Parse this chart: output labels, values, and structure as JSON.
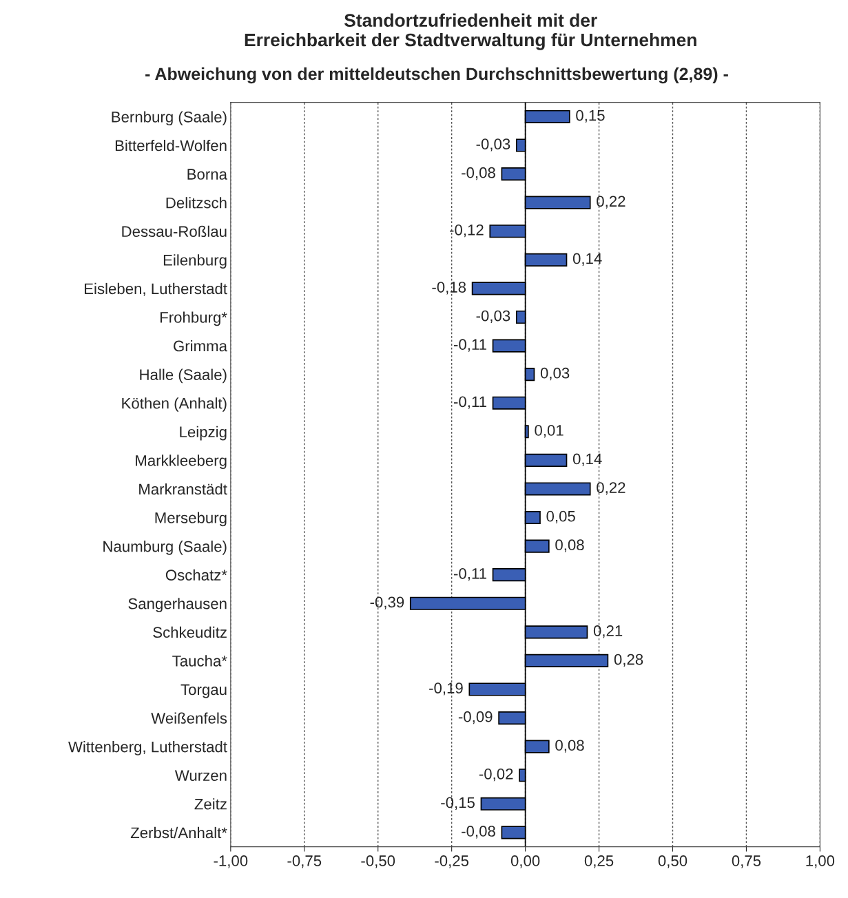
{
  "chart_data": {
    "type": "bar",
    "orientation": "horizontal",
    "title": "Standortzufriedenheit mit der\nErreichbarkeit der Stadtverwaltung für Unternehmen",
    "subtitle": "- Abweichung von der mitteldeutschen Durchschnittsbewertung (2,89) -",
    "categories": [
      "Bernburg (Saale)",
      "Bitterfeld-Wolfen",
      "Borna",
      "Delitzsch",
      "Dessau-Roßlau",
      "Eilenburg",
      "Eisleben, Lutherstadt",
      "Frohburg*",
      "Grimma",
      "Halle (Saale)",
      "Köthen (Anhalt)",
      "Leipzig",
      "Markkleeberg",
      "Markranstädt",
      "Merseburg",
      "Naumburg (Saale)",
      "Oschatz*",
      "Sangerhausen",
      "Schkeuditz",
      "Taucha*",
      "Torgau",
      "Weißenfels",
      "Wittenberg, Lutherstadt",
      "Wurzen",
      "Zeitz",
      "Zerbst/Anhalt*"
    ],
    "values": [
      0.15,
      -0.03,
      -0.08,
      0.22,
      -0.12,
      0.14,
      -0.18,
      -0.03,
      -0.11,
      0.03,
      -0.11,
      0.01,
      0.14,
      0.22,
      0.05,
      0.08,
      -0.11,
      -0.39,
      0.21,
      0.28,
      -0.19,
      -0.09,
      0.08,
      -0.02,
      -0.15,
      -0.08
    ],
    "value_labels": [
      "0,15",
      "-0,03",
      "-0,08",
      "0,22",
      "-0,12",
      "0,14",
      "-0,18",
      "-0,03",
      "-0,11",
      "0,03",
      "-0,11",
      "0,01",
      "0,14",
      "0,22",
      "0,05",
      "0,08",
      "-0,11",
      "-0,39",
      "0,21",
      "0,28",
      "-0,19",
      "-0,09",
      "0,08",
      "-0,02",
      "-0,15",
      "-0,08"
    ],
    "color": "#3a5fb5",
    "xlim": [
      -1,
      1
    ],
    "xticks": [
      {
        "value": -1,
        "label": "-1,00"
      },
      {
        "value": -0.75,
        "label": "-0,75"
      },
      {
        "value": -0.5,
        "label": "-0,50"
      },
      {
        "value": -0.25,
        "label": "-0,25"
      },
      {
        "value": 0,
        "label": "0,00"
      },
      {
        "value": 0.25,
        "label": "0,25"
      },
      {
        "value": 0.5,
        "label": "0,50"
      },
      {
        "value": 0.75,
        "label": "0,75"
      },
      {
        "value": 1,
        "label": "1,00"
      }
    ],
    "grid": "x",
    "legend": false
  }
}
